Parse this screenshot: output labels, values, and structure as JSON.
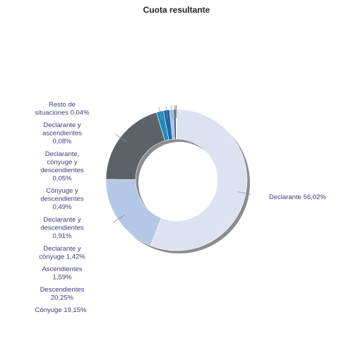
{
  "chart_data": {
    "type": "pie",
    "title": "Cuota resultante",
    "slices": [
      {
        "label": "Declarante 56,02%",
        "value": 56.02,
        "color": "#dde1f1"
      },
      {
        "label": "Cónyuge 19,15%",
        "value": 19.15,
        "color": "#b3c8e6"
      },
      {
        "label": "Descendientes 20,25%",
        "value": 20.25,
        "color": "#5d6168"
      },
      {
        "label": "Ascendientes 1,59%",
        "value": 1.59,
        "color": "#1d8dbd"
      },
      {
        "label": "Declarante y cónyuge 1,42%",
        "value": 1.42,
        "color": "#2165ae"
      },
      {
        "label": "Declarante y descendientes 0,91%",
        "value": 0.91,
        "color": "#a7c0dc"
      },
      {
        "label": "Cónyuge y descendientes 0,49%",
        "value": 0.49,
        "color": "#1f3a66"
      },
      {
        "label": "Declarante, cónyuge y descendientes 0,05%",
        "value": 0.05,
        "color": "#8aa4c6"
      },
      {
        "label": "Declarante y ascendientes 0,08%",
        "value": 0.08,
        "color": "#4f6d98"
      },
      {
        "label": "Resto de situaciones 0,04%",
        "value": 0.04,
        "color": "#c7d3e6"
      }
    ]
  }
}
